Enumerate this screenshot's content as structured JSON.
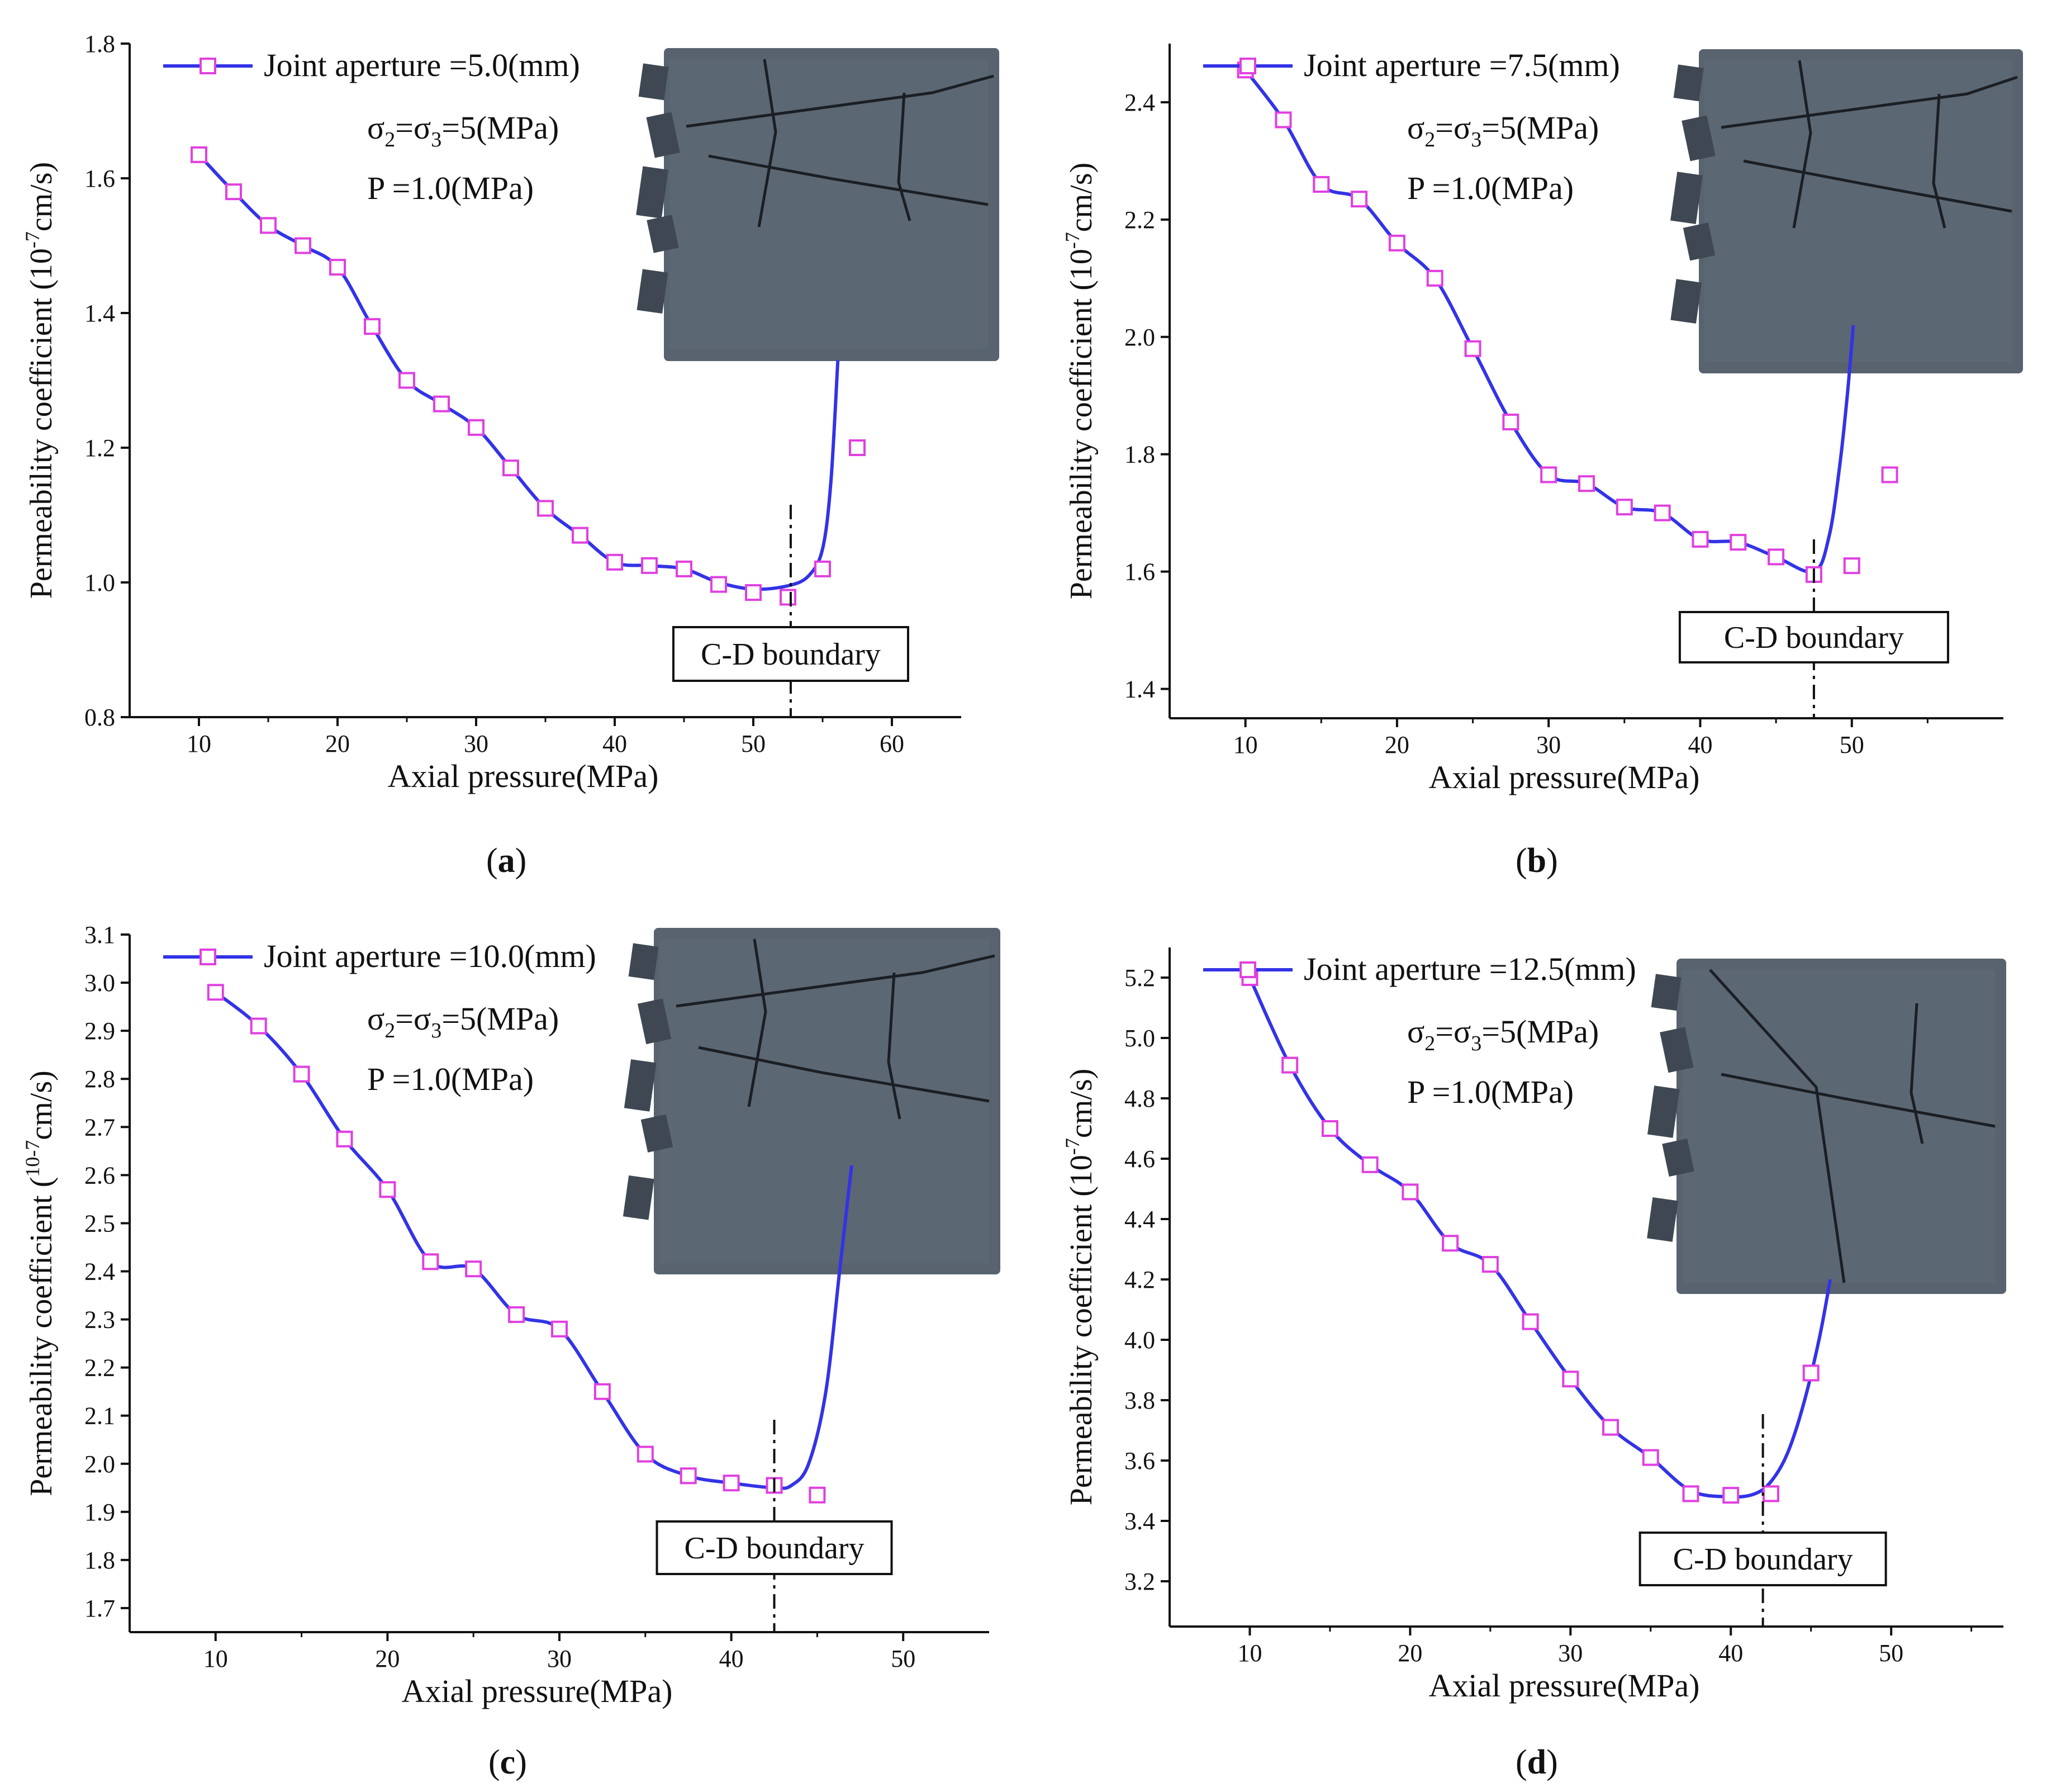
{
  "figure": {
    "panels": [
      {
        "letter": "a",
        "paren_open": "(",
        "paren_close": ")"
      },
      {
        "letter": "b",
        "paren_open": "(",
        "paren_close": ")"
      },
      {
        "letter": "c",
        "paren_open": "(",
        "paren_close": ")"
      },
      {
        "letter": "d",
        "paren_open": "(",
        "paren_close": ")"
      }
    ]
  },
  "colors": {
    "line": "#3333e6",
    "marker": "#e040e0",
    "rock": "#58636f",
    "rock_dark": "#3f4852",
    "crack": "#1b1f24"
  },
  "chart_data": [
    {
      "type": "line",
      "xlabel": "Axial pressure(MPa)",
      "ylabel": "Permeability coefficient (10-7cm/s)",
      "ylabel_parts": {
        "pre": "Permeability coefficient (10",
        "sup": "-7",
        "post": "cm/s)"
      },
      "xlim": [
        5,
        65
      ],
      "ylim": [
        0.8,
        1.8
      ],
      "xticks": [
        10,
        20,
        30,
        40,
        50,
        60
      ],
      "yticks": [
        0.8,
        1.0,
        1.2,
        1.4,
        1.6,
        1.8
      ],
      "ytick_decimals": 1,
      "legend": "Joint aperture =5.0(mm)",
      "legend_position": "top-left",
      "stress_text": "σ2=σ3=5(MPa)",
      "stress_parts": {
        "a": "σ",
        "s1": "2",
        "b": "=σ",
        "s2": "3",
        "c": "=5(MPa)"
      },
      "pressure_text": "P =1.0(MPa)",
      "boundary_label": "C-D boundary",
      "boundary_x": 52.7,
      "series": [
        {
          "x": [
            10,
            12.5,
            15,
            17.5,
            20,
            22.5,
            25,
            27.5,
            30,
            32.5,
            35,
            37.5,
            40,
            42.5,
            45,
            47.5,
            50,
            52.5,
            55,
            57.5
          ],
          "y": [
            1.635,
            1.58,
            1.53,
            1.5,
            1.468,
            1.38,
            1.3,
            1.265,
            1.23,
            1.17,
            1.11,
            1.07,
            1.03,
            1.025,
            1.02,
            0.997,
            0.985,
            0.978,
            1.02,
            1.2
          ]
        }
      ],
      "fit_curve": {
        "x": [
          10,
          12.5,
          15,
          17.5,
          20,
          22.5,
          25,
          27.5,
          30,
          32.5,
          35,
          37.5,
          40,
          42.5,
          45,
          47.5,
          50,
          52.5,
          54,
          55,
          55.6,
          56.1
        ],
        "y": [
          1.635,
          1.58,
          1.53,
          1.5,
          1.468,
          1.38,
          1.3,
          1.265,
          1.23,
          1.17,
          1.11,
          1.07,
          1.03,
          1.025,
          1.02,
          1.0,
          0.99,
          0.995,
          1.01,
          1.05,
          1.15,
          1.33
        ]
      }
    },
    {
      "type": "line",
      "xlabel": "Axial pressure(MPa)",
      "ylabel": "Permeability coefficient (10-7cm/s)",
      "ylabel_parts": {
        "pre": "Permeability coefficient (10",
        "sup": "-7",
        "post": "cm/s)"
      },
      "xlim": [
        5,
        60
      ],
      "ylim": [
        1.35,
        2.5
      ],
      "xticks": [
        10,
        20,
        30,
        40,
        50
      ],
      "yticks": [
        1.4,
        1.6,
        1.8,
        2.0,
        2.2,
        2.4
      ],
      "ytick_decimals": 1,
      "legend": "Joint aperture =7.5(mm)",
      "legend_position": "top-left",
      "stress_text": "σ2=σ3=5(MPa)",
      "stress_parts": {
        "a": "σ",
        "s1": "2",
        "b": "=σ",
        "s2": "3",
        "c": "=5(MPa)"
      },
      "pressure_text": "P =1.0(MPa)",
      "boundary_label": "C-D boundary",
      "boundary_x": 47.5,
      "series": [
        {
          "x": [
            10,
            12.5,
            15,
            17.5,
            20,
            22.5,
            25,
            27.5,
            30,
            32.5,
            35,
            37.5,
            40,
            42.5,
            45,
            47.5,
            50,
            52.5
          ],
          "y": [
            2.455,
            2.37,
            2.26,
            2.235,
            2.16,
            2.1,
            1.98,
            1.855,
            1.765,
            1.75,
            1.71,
            1.7,
            1.655,
            1.65,
            1.625,
            1.595,
            1.61,
            1.765
          ]
        }
      ],
      "fit_curve": {
        "x": [
          10,
          12.5,
          15,
          17.5,
          20,
          22.5,
          25,
          27.5,
          30,
          32.5,
          35,
          37.5,
          40,
          42.5,
          45,
          47.5,
          48.5,
          49.2,
          49.7,
          50.1
        ],
        "y": [
          2.455,
          2.37,
          2.26,
          2.235,
          2.16,
          2.1,
          1.98,
          1.855,
          1.765,
          1.75,
          1.71,
          1.7,
          1.655,
          1.65,
          1.625,
          1.6,
          1.66,
          1.78,
          1.9,
          2.02
        ]
      }
    },
    {
      "type": "line",
      "xlabel": "Axial pressure(MPa)",
      "ylabel": "Permeability coefficient (10-7cm/s)",
      "ylabel_parts": {
        "pre": "Permeability coefficient (",
        "sup": "10-7",
        "post": "cm/s)"
      },
      "xlim": [
        5,
        55
      ],
      "ylim": [
        1.65,
        3.1
      ],
      "xticks": [
        10,
        20,
        30,
        40,
        50
      ],
      "yticks": [
        1.7,
        1.8,
        1.9,
        2.0,
        2.1,
        2.2,
        2.3,
        2.4,
        2.5,
        2.6,
        2.7,
        2.8,
        2.9,
        3.0,
        3.1
      ],
      "ytick_decimals": 1,
      "legend": "Joint aperture =10.0(mm)",
      "legend_position": "top-left",
      "stress_text": "σ2=σ3=5(MPa)",
      "stress_parts": {
        "a": "σ",
        "s1": "2",
        "b": "=σ",
        "s2": "3",
        "c": "=5(MPa)"
      },
      "pressure_text": "P =1.0(MPa)",
      "boundary_label": "C-D boundary",
      "boundary_x": 42.5,
      "series": [
        {
          "x": [
            10,
            12.5,
            15,
            17.5,
            20,
            22.5,
            25,
            27.5,
            30,
            32.5,
            35,
            37.5,
            40,
            42.5,
            45
          ],
          "y": [
            2.98,
            2.91,
            2.81,
            2.675,
            2.57,
            2.42,
            2.405,
            2.31,
            2.28,
            2.15,
            2.02,
            1.975,
            1.96,
            1.955,
            1.935
          ]
        }
      ],
      "fit_curve": {
        "x": [
          10,
          12.5,
          15,
          17.5,
          20,
          22.5,
          25,
          27.5,
          30,
          32.5,
          35,
          37.5,
          40,
          42.5,
          43.5,
          44.5,
          45.5,
          46.3,
          47
        ],
        "y": [
          2.98,
          2.91,
          2.81,
          2.675,
          2.57,
          2.42,
          2.405,
          2.31,
          2.28,
          2.15,
          2.02,
          1.975,
          1.96,
          1.95,
          1.955,
          2.0,
          2.15,
          2.4,
          2.62
        ]
      }
    },
    {
      "type": "line",
      "xlabel": "Axial pressure(MPa)",
      "ylabel": "Permeability coefficient (10-7cm/s)",
      "ylabel_parts": {
        "pre": "Permeability coefficient (10",
        "sup": "-7",
        "post": "cm/s)"
      },
      "xlim": [
        5,
        57
      ],
      "ylim": [
        3.05,
        5.3
      ],
      "xticks": [
        10,
        20,
        30,
        40,
        50
      ],
      "yticks": [
        3.2,
        3.4,
        3.6,
        3.8,
        4.0,
        4.2,
        4.4,
        4.6,
        4.8,
        5.0,
        5.2
      ],
      "ytick_decimals": 1,
      "legend": "Joint aperture =12.5(mm)",
      "legend_position": "top-left",
      "stress_text": "σ2=σ3=5(MPa)",
      "stress_parts": {
        "a": "σ",
        "s1": "2",
        "b": "=σ",
        "s2": "3",
        "c": "=5(MPa)"
      },
      "pressure_text": "P =1.0(MPa)",
      "boundary_label": "C-D boundary",
      "boundary_x": 42,
      "series": [
        {
          "x": [
            10,
            12.5,
            15,
            17.5,
            20,
            22.5,
            25,
            27.5,
            30,
            32.5,
            35,
            37.5,
            40,
            42.5,
            45
          ],
          "y": [
            5.2,
            4.91,
            4.7,
            4.58,
            4.49,
            4.32,
            4.25,
            4.06,
            3.87,
            3.71,
            3.61,
            3.49,
            3.485,
            3.49,
            3.89
          ]
        }
      ],
      "fit_curve": {
        "x": [
          10,
          12.5,
          15,
          17.5,
          20,
          22.5,
          25,
          27.5,
          30,
          32.5,
          35,
          37.5,
          40,
          41.5,
          42.5,
          43.5,
          44.5,
          45.5,
          46.2
        ],
        "y": [
          5.2,
          4.91,
          4.7,
          4.58,
          4.49,
          4.32,
          4.25,
          4.06,
          3.87,
          3.71,
          3.61,
          3.5,
          3.48,
          3.49,
          3.53,
          3.62,
          3.78,
          4.0,
          4.2
        ]
      }
    }
  ]
}
